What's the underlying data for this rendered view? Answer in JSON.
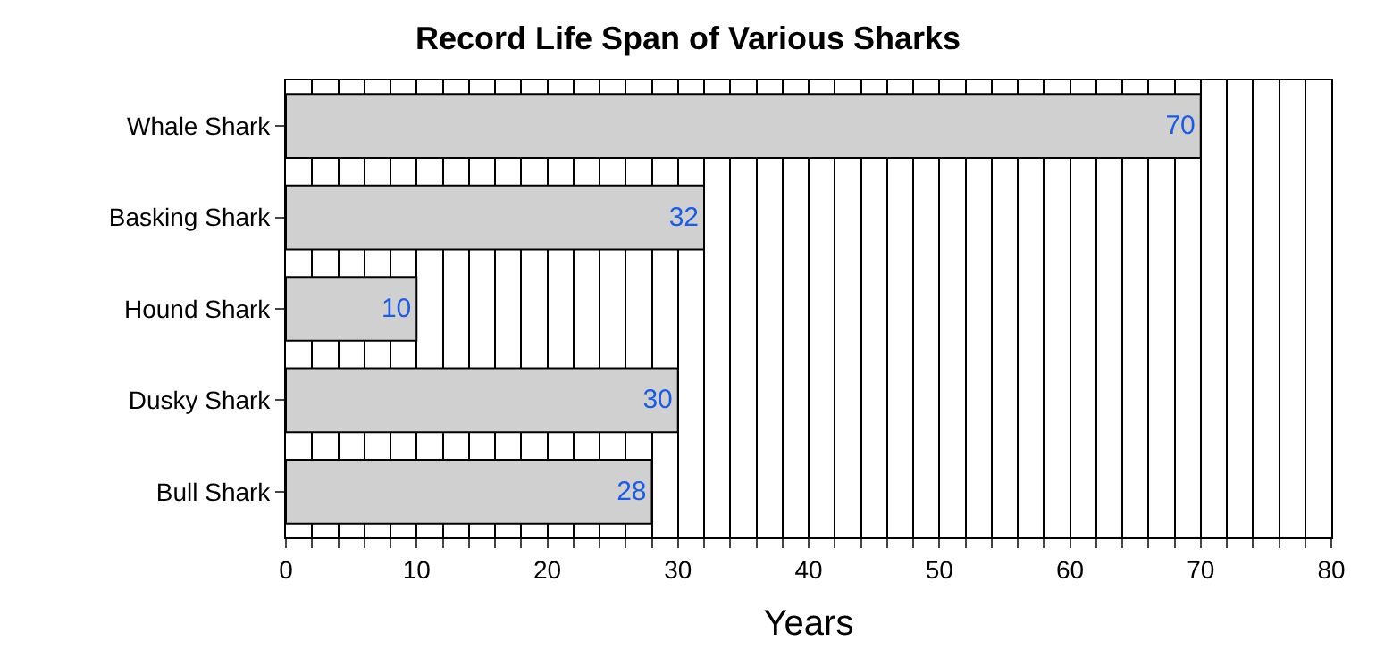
{
  "chart_data": {
    "type": "bar",
    "orientation": "horizontal",
    "title": "Record Life Span of Various Sharks",
    "xlabel": "Years",
    "categories": [
      "Whale Shark",
      "Basking Shark",
      "Hound Shark",
      "Dusky Shark",
      "Bull Shark"
    ],
    "values": [
      70,
      32,
      10,
      30,
      28
    ],
    "color": "#d0d0d0",
    "data_labels": true,
    "xlim": [
      0,
      80
    ],
    "xticks": [
      0,
      {
        "value": 2,
        "label": null
      },
      {
        "value": 4,
        "label": null
      },
      {
        "value": 6,
        "label": null
      },
      {
        "value": 8,
        "label": null
      },
      10,
      {
        "value": 12,
        "label": null
      },
      {
        "value": 14,
        "label": null
      },
      {
        "value": 16,
        "label": null
      },
      {
        "value": 18,
        "label": null
      },
      20,
      {
        "value": 22,
        "label": null
      },
      {
        "value": 24,
        "label": null
      },
      {
        "value": 26,
        "label": null
      },
      {
        "value": 28,
        "label": null
      },
      30,
      {
        "value": 32,
        "label": null
      },
      {
        "value": 34,
        "label": null
      },
      {
        "value": 36,
        "label": null
      },
      {
        "value": 38,
        "label": null
      },
      40,
      {
        "value": 42,
        "label": null
      },
      {
        "value": 44,
        "label": null
      },
      {
        "value": 46,
        "label": null
      },
      {
        "value": 48,
        "label": null
      },
      50,
      {
        "value": 52,
        "label": null
      },
      {
        "value": 54,
        "label": null
      },
      {
        "value": 56,
        "label": null
      },
      {
        "value": 58,
        "label": null
      },
      60,
      {
        "value": 62,
        "label": null
      },
      {
        "value": 64,
        "label": null
      },
      {
        "value": 66,
        "label": null
      },
      {
        "value": 68,
        "label": null
      },
      70,
      {
        "value": 72,
        "label": null
      },
      {
        "value": 74,
        "label": null
      },
      {
        "value": 76,
        "label": null
      },
      {
        "value": 78,
        "label": null
      },
      80
    ],
    "grid": "x",
    "legend": false
  }
}
